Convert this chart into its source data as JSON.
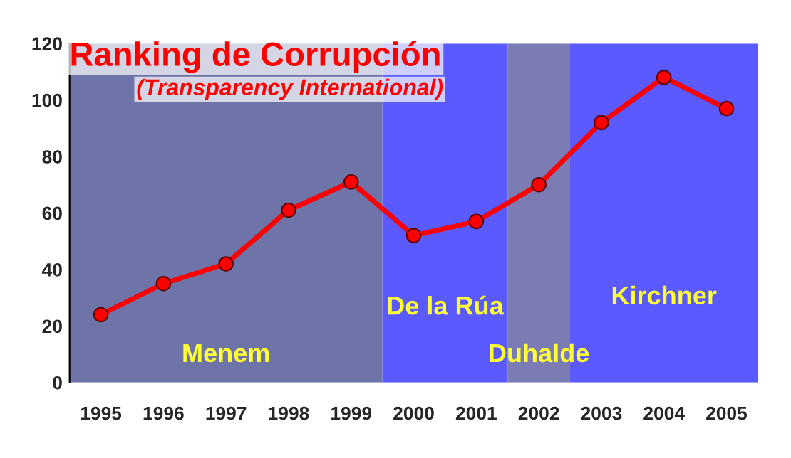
{
  "chart_data": {
    "type": "line",
    "title": "Ranking de Corrupción",
    "subtitle": "(Transparency International)",
    "categories": [
      "1995",
      "1996",
      "1997",
      "1998",
      "1999",
      "2000",
      "2001",
      "2002",
      "2003",
      "2004",
      "2005"
    ],
    "series": [
      {
        "color": "#ff0000",
        "values": [
          24,
          35,
          42,
          61,
          71,
          52,
          57,
          70,
          92,
          108,
          97
        ]
      }
    ],
    "ylim": [
      0,
      120
    ],
    "yticks": [
      0,
      20,
      40,
      60,
      80,
      100,
      120
    ],
    "grid": false,
    "legend": false,
    "marker": "circle",
    "line_style": "solid",
    "bands": [
      {
        "axis": "x",
        "from": "1995",
        "to": "1999",
        "label": "Menem",
        "color": "#6e73a8"
      },
      {
        "axis": "x",
        "from": "2000",
        "to": "2001",
        "label": "De la Rúa",
        "color": "#5a5aff"
      },
      {
        "axis": "x",
        "from": "2002",
        "to": "2002",
        "label": "Duhalde",
        "color": "#7c7cb4"
      },
      {
        "axis": "x",
        "from": "2003",
        "to": "2005",
        "label": "Kirchner",
        "color": "#5a5aff"
      }
    ]
  }
}
